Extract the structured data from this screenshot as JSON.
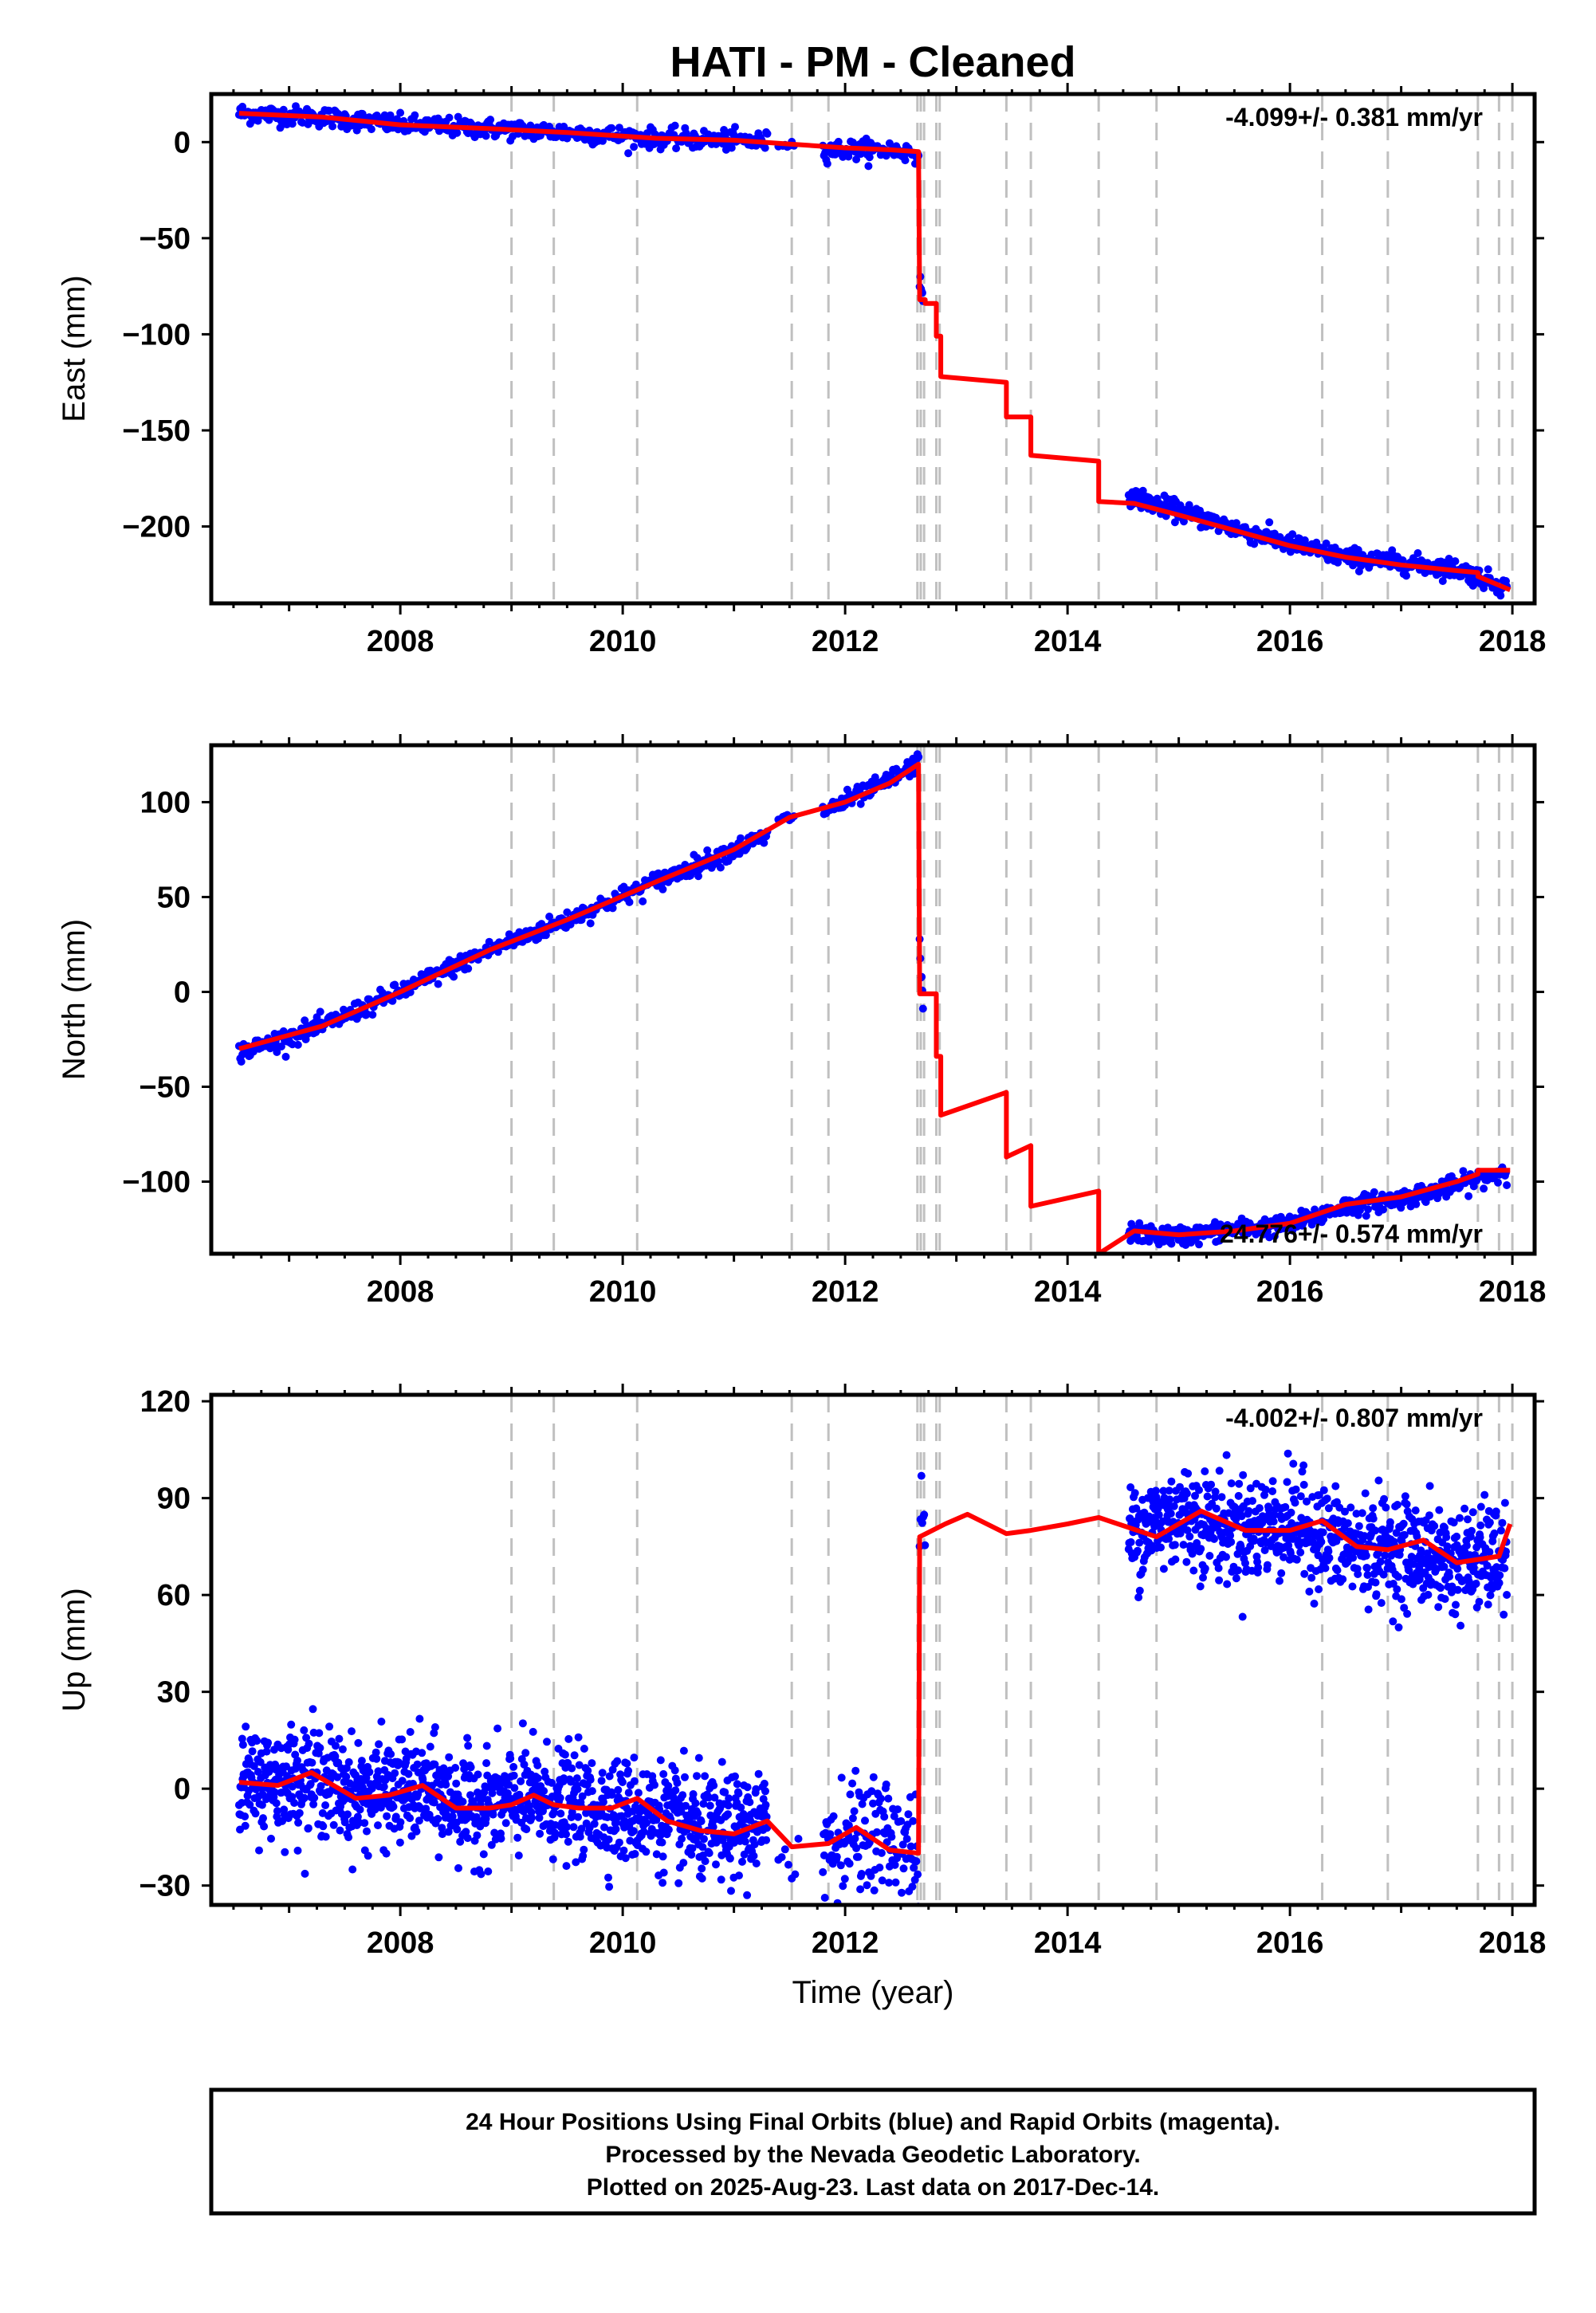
{
  "title": "HATI  - PM - Cleaned",
  "footer": {
    "lines": [
      "24 Hour Positions Using Final Orbits (blue) and Rapid Orbits (magenta).",
      "Processed by the Nevada Geodetic Laboratory.",
      "Plotted on 2025-Aug-23. Last data on 2017-Dec-14."
    ]
  },
  "colors": {
    "data_points": "#0000ff",
    "model_line": "#ff0000",
    "event_lines": "#c0c0c0",
    "frame": "#000000"
  },
  "chart_data": [
    {
      "type": "scatter",
      "ylabel": "East (mm)",
      "xlabel": "",
      "rate_text": "-4.099+/- 0.381 mm/yr",
      "xlim": [
        2006.3,
        2018.2
      ],
      "ylim": [
        -240,
        25
      ],
      "xticks": [
        "2008",
        "2010",
        "2012",
        "2014",
        "2016",
        "2018"
      ],
      "yticks": [
        0,
        -50,
        -100,
        -150,
        -200
      ],
      "event_lines": [
        2009.0,
        2009.38,
        2010.13,
        2011.52,
        2011.85,
        2012.65,
        2012.68,
        2012.71,
        2012.82,
        2012.85,
        2013.45,
        2013.67,
        2014.28,
        2014.8,
        2016.29,
        2016.88,
        2017.69,
        2017.88,
        2018.0
      ],
      "segments": [
        {
          "x": [
            2006.55,
            2007.3,
            2008.0,
            2008.8,
            2009.5,
            2010.3,
            2011.0,
            2011.3
          ],
          "y": [
            15,
            13,
            9,
            7,
            5,
            2,
            1,
            0
          ],
          "noise": 2.5,
          "step": 0.01
        },
        {
          "x": [
            2011.4,
            2011.55
          ],
          "y": [
            -1,
            -1
          ],
          "noise": 1.0,
          "step": 0.02
        },
        {
          "x": [
            2011.8,
            2012.4,
            2012.66
          ],
          "y": [
            -4,
            -4,
            -6
          ],
          "noise": 2.5,
          "step": 0.01
        },
        {
          "x": [
            2012.67,
            2012.7
          ],
          "y": [
            -70,
            -86
          ],
          "noise": 2.0,
          "step": 0.006
        },
        {
          "x": [
            2014.55,
            2015.0,
            2015.5,
            2016.0,
            2016.5,
            2017.0,
            2017.5,
            2017.95
          ],
          "y": [
            -184,
            -192,
            -201,
            -209,
            -216,
            -219,
            -222,
            -232
          ],
          "noise": 2.5,
          "step": 0.008
        }
      ],
      "model": {
        "x": [
          2006.55,
          2007.3,
          2008.0,
          2008.8,
          2009.5,
          2010.3,
          2011.0,
          2011.5,
          2012.0,
          2012.4,
          2012.66,
          2012.67,
          2012.72,
          2012.72,
          2012.82,
          2012.82,
          2012.86,
          2012.86,
          2013.45,
          2013.45,
          2013.67,
          2013.67,
          2014.28,
          2014.28,
          2014.6,
          2015.0,
          2015.5,
          2016.0,
          2016.5,
          2017.0,
          2017.5,
          2017.69,
          2017.69,
          2017.98
        ],
        "y": [
          15,
          13,
          9,
          7,
          5,
          2,
          1,
          -1,
          -3,
          -4,
          -5,
          -82,
          -82,
          -84,
          -84,
          -101,
          -101,
          -122,
          -125,
          -143,
          -143,
          -163,
          -166,
          -187,
          -188,
          -194,
          -202,
          -210,
          -216,
          -220,
          -223,
          -224,
          -226,
          -233
        ]
      }
    },
    {
      "type": "scatter",
      "ylabel": "North (mm)",
      "xlabel": "",
      "rate_text": "24.776+/- 0.574 mm/yr",
      "xlim": [
        2006.3,
        2018.2
      ],
      "ylim": [
        -138,
        130
      ],
      "xticks": [
        "2008",
        "2010",
        "2012",
        "2014",
        "2016",
        "2018"
      ],
      "yticks": [
        100,
        50,
        0,
        -50,
        -100
      ],
      "event_lines": [
        2009.0,
        2009.38,
        2010.13,
        2011.52,
        2011.85,
        2012.65,
        2012.68,
        2012.71,
        2012.82,
        2012.85,
        2013.45,
        2013.67,
        2014.28,
        2014.8,
        2016.29,
        2016.88,
        2017.69,
        2017.88,
        2018.0
      ],
      "segments": [
        {
          "x": [
            2006.55,
            2007.3,
            2008.0,
            2008.8,
            2009.5,
            2010.3,
            2011.0,
            2011.3
          ],
          "y": [
            -32,
            -18,
            0,
            22,
            38,
            58,
            75,
            82
          ],
          "noise": 2.5,
          "step": 0.01
        },
        {
          "x": [
            2011.4,
            2011.55
          ],
          "y": [
            90,
            93
          ],
          "noise": 1.5,
          "step": 0.02
        },
        {
          "x": [
            2011.8,
            2012.3,
            2012.66
          ],
          "y": [
            95,
            108,
            121
          ],
          "noise": 2.5,
          "step": 0.01
        },
        {
          "x": [
            2012.67,
            2012.7
          ],
          "y": [
            25,
            -5
          ],
          "noise": 3.0,
          "step": 0.006
        },
        {
          "x": [
            2014.55,
            2015.0,
            2015.5,
            2016.0,
            2016.5,
            2017.0,
            2017.5,
            2017.95
          ],
          "y": [
            -127,
            -129,
            -125,
            -123,
            -113,
            -109,
            -102,
            -94
          ],
          "noise": 2.5,
          "step": 0.008
        }
      ],
      "model": {
        "x": [
          2006.55,
          2007.3,
          2008.0,
          2008.8,
          2009.5,
          2010.3,
          2011.0,
          2011.5,
          2012.0,
          2012.4,
          2012.66,
          2012.67,
          2012.72,
          2012.72,
          2012.82,
          2012.82,
          2012.86,
          2012.86,
          2013.45,
          2013.45,
          2013.67,
          2013.67,
          2014.28,
          2014.28,
          2014.6,
          2015.0,
          2015.5,
          2016.0,
          2016.5,
          2017.0,
          2017.5,
          2017.69,
          2017.69,
          2017.98
        ],
        "y": [
          -30,
          -18,
          0,
          22,
          38,
          58,
          75,
          92,
          100,
          110,
          120,
          -1,
          -1,
          -1,
          -1,
          -34,
          -34,
          -65,
          -53,
          -87,
          -81,
          -113,
          -105,
          -138,
          -126,
          -128,
          -126,
          -122,
          -112,
          -108,
          -100,
          -96,
          -94,
          -94
        ]
      }
    },
    {
      "type": "scatter",
      "ylabel": "Up (mm)",
      "xlabel": "Time (year)",
      "rate_text": "-4.002+/- 0.807 mm/yr",
      "xlim": [
        2006.3,
        2018.2
      ],
      "ylim": [
        -36,
        122
      ],
      "xticks": [
        "2008",
        "2010",
        "2012",
        "2014",
        "2016",
        "2018"
      ],
      "yticks": [
        120,
        90,
        60,
        30,
        0,
        -30
      ],
      "event_lines": [
        2009.0,
        2009.38,
        2010.13,
        2011.52,
        2011.85,
        2012.65,
        2012.68,
        2012.71,
        2012.82,
        2012.85,
        2013.45,
        2013.67,
        2014.28,
        2014.8,
        2016.29,
        2016.88,
        2017.69,
        2017.88,
        2018.0
      ],
      "segments": [
        {
          "x": [
            2006.55,
            2007.2,
            2007.6,
            2008.2,
            2008.6,
            2009.2,
            2009.8,
            2010.3,
            2010.7,
            2011.3
          ],
          "y": [
            1,
            4,
            -2,
            0,
            -6,
            -3,
            -6,
            -8,
            -13,
            -12
          ],
          "noise": 8.0,
          "step": 0.004
        },
        {
          "x": [
            2011.4,
            2011.6
          ],
          "y": [
            -18,
            -18
          ],
          "noise": 6.0,
          "step": 0.03
        },
        {
          "x": [
            2011.8,
            2012.3,
            2012.66
          ],
          "y": [
            -17,
            -13,
            -20
          ],
          "noise": 9.0,
          "step": 0.006
        },
        {
          "x": [
            2012.67,
            2012.72
          ],
          "y": [
            80,
            80
          ],
          "noise": 8.0,
          "step": 0.008
        },
        {
          "x": [
            2014.55,
            2015.0,
            2015.5,
            2016.0,
            2016.5,
            2017.0,
            2017.5,
            2017.95
          ],
          "y": [
            79,
            85,
            80,
            82,
            75,
            74,
            70,
            72
          ],
          "noise": 8.0,
          "step": 0.004
        }
      ],
      "model": {
        "x": [
          2006.55,
          2006.9,
          2007.2,
          2007.6,
          2007.9,
          2008.2,
          2008.5,
          2008.8,
          2009.0,
          2009.2,
          2009.38,
          2009.6,
          2009.9,
          2010.13,
          2010.4,
          2010.7,
          2011.0,
          2011.3,
          2011.52,
          2011.85,
          2012.1,
          2012.4,
          2012.66,
          2012.67,
          2012.9,
          2013.1,
          2013.45,
          2013.67,
          2014.0,
          2014.28,
          2014.8,
          2015.2,
          2015.6,
          2016.0,
          2016.29,
          2016.6,
          2016.88,
          2017.2,
          2017.5,
          2017.69,
          2017.88,
          2017.98
        ],
        "y": [
          2,
          1,
          5,
          -3,
          -2,
          1,
          -6,
          -6,
          -5,
          -2,
          -5,
          -6,
          -6,
          -3,
          -10,
          -13,
          -14,
          -10,
          -18,
          -17,
          -12,
          -19,
          -20,
          78,
          82,
          85,
          79,
          80,
          82,
          84,
          78,
          86,
          80,
          80,
          83,
          75,
          74,
          77,
          70,
          71,
          72,
          82
        ]
      }
    }
  ]
}
